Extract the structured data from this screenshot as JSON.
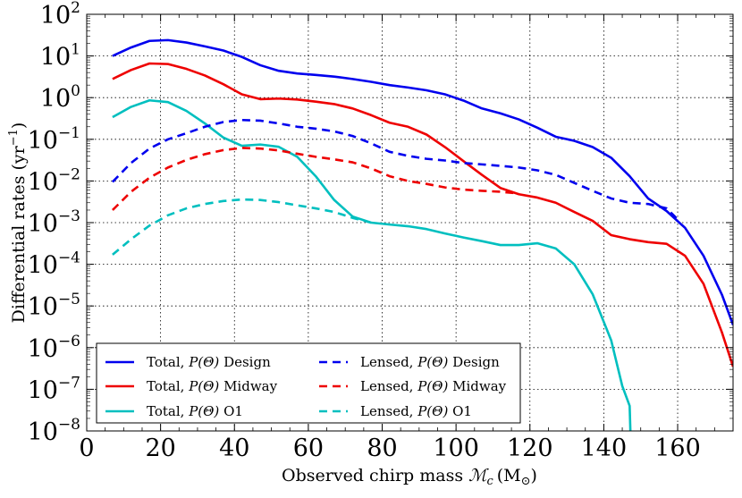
{
  "chart_data": {
    "type": "line",
    "xlabel": "Observed chirp mass",
    "xlabel_symbol": "ℳ",
    "xlabel_sub": "c",
    "xlabel_unit": "(M",
    "xlabel_unit_sub": "⊙",
    "xlabel_unit_close": ")",
    "ylabel": "Differential rates (yr",
    "ylabel_sup": "−1",
    "ylabel_close": ")",
    "xlim": [
      0,
      175
    ],
    "ylim_log10": [
      -8,
      2
    ],
    "x_ticks": [
      0,
      20,
      40,
      60,
      80,
      100,
      120,
      140,
      160
    ],
    "x_tick_labels": [
      "0",
      "20",
      "40",
      "60",
      "80",
      "100",
      "120",
      "140",
      "160"
    ],
    "y_ticks_log10": [
      -8,
      -7,
      -6,
      -5,
      -4,
      -3,
      -2,
      -1,
      0,
      1,
      2
    ],
    "y_tick_base": "10",
    "y_tick_exponents": [
      "−8",
      "−7",
      "−6",
      "−5",
      "−4",
      "−3",
      "−2",
      "−1",
      "0",
      "1",
      "2"
    ],
    "grid": true,
    "legend_position": "bottom-left",
    "series": [
      {
        "name": "Total, P(Θ) Design",
        "legend_prefix": "Total, ",
        "legend_mid": "P(Θ)",
        "legend_suffix": " Design",
        "color": "#0000ee",
        "style": "solid",
        "points": [
          [
            7,
            10
          ],
          [
            12,
            16
          ],
          [
            17,
            23
          ],
          [
            22,
            24
          ],
          [
            27,
            21
          ],
          [
            32,
            17
          ],
          [
            37,
            13.5
          ],
          [
            42,
            9.5
          ],
          [
            47,
            6
          ],
          [
            52,
            4.4
          ],
          [
            57,
            3.8
          ],
          [
            62,
            3.5
          ],
          [
            67,
            3.2
          ],
          [
            72,
            2.8
          ],
          [
            77,
            2.4
          ],
          [
            82,
            2
          ],
          [
            87,
            1.75
          ],
          [
            92,
            1.5
          ],
          [
            97,
            1.2
          ],
          [
            102,
            0.85
          ],
          [
            107,
            0.55
          ],
          [
            112,
            0.42
          ],
          [
            117,
            0.3
          ],
          [
            122,
            0.19
          ],
          [
            127,
            0.115
          ],
          [
            132,
            0.092
          ],
          [
            137,
            0.065
          ],
          [
            142,
            0.036
          ],
          [
            147,
            0.013
          ],
          [
            152,
            0.0038
          ],
          [
            157,
            0.0019
          ],
          [
            162,
            0.00075
          ],
          [
            167,
            0.00016
          ],
          [
            172,
            1.85e-05
          ],
          [
            175,
            3.5e-06
          ]
        ]
      },
      {
        "name": "Total, P(Θ) Midway",
        "legend_prefix": "Total, ",
        "legend_mid": "P(Θ)",
        "legend_suffix": " Midway",
        "color": "#ee0000",
        "style": "solid",
        "points": [
          [
            7,
            2.8
          ],
          [
            12,
            4.6
          ],
          [
            17,
            6.6
          ],
          [
            22,
            6.4
          ],
          [
            27,
            4.9
          ],
          [
            32,
            3.4
          ],
          [
            37,
            2.1
          ],
          [
            42,
            1.2
          ],
          [
            47,
            0.92
          ],
          [
            52,
            0.95
          ],
          [
            57,
            0.9
          ],
          [
            62,
            0.8
          ],
          [
            67,
            0.7
          ],
          [
            72,
            0.55
          ],
          [
            77,
            0.38
          ],
          [
            82,
            0.25
          ],
          [
            87,
            0.2
          ],
          [
            92,
            0.13
          ],
          [
            97,
            0.065
          ],
          [
            102,
            0.03
          ],
          [
            107,
            0.014
          ],
          [
            112,
            0.0068
          ],
          [
            117,
            0.0048
          ],
          [
            122,
            0.004
          ],
          [
            127,
            0.003
          ],
          [
            132,
            0.0018
          ],
          [
            137,
            0.0011
          ],
          [
            142,
            0.0005
          ],
          [
            147,
            0.0004
          ],
          [
            152,
            0.00034
          ],
          [
            157,
            0.00031
          ],
          [
            162,
            0.00016
          ],
          [
            167,
            3.4e-05
          ],
          [
            172,
            2.3e-06
          ],
          [
            175,
            3.5e-07
          ]
        ]
      },
      {
        "name": "Total, P(Θ) O1",
        "legend_prefix": "Total, ",
        "legend_mid": "P(Θ)",
        "legend_suffix": " O1",
        "color": "#00bfbf",
        "style": "solid",
        "points": [
          [
            7,
            0.34
          ],
          [
            12,
            0.6
          ],
          [
            17,
            0.86
          ],
          [
            22,
            0.78
          ],
          [
            27,
            0.48
          ],
          [
            32,
            0.24
          ],
          [
            37,
            0.11
          ],
          [
            42,
            0.07
          ],
          [
            47,
            0.075
          ],
          [
            52,
            0.066
          ],
          [
            57,
            0.038
          ],
          [
            62,
            0.013
          ],
          [
            67,
            0.0035
          ],
          [
            72,
            0.0014
          ],
          [
            77,
            0.001
          ],
          [
            82,
            0.0009
          ],
          [
            87,
            0.00082
          ],
          [
            92,
            0.0007
          ],
          [
            97,
            0.00055
          ],
          [
            102,
            0.00044
          ],
          [
            107,
            0.00036
          ],
          [
            112,
            0.00029
          ],
          [
            117,
            0.00029
          ],
          [
            122,
            0.00032
          ],
          [
            127,
            0.00024
          ],
          [
            132,
            0.0001
          ],
          [
            137,
            1.9e-05
          ],
          [
            142,
            1.5e-06
          ],
          [
            145,
            1.2e-07
          ],
          [
            147,
            4e-08
          ],
          [
            147.2,
            1e-08
          ]
        ]
      },
      {
        "name": "Lensed, P(Θ) Design",
        "legend_prefix": "Lensed, ",
        "legend_mid": "P(Θ)",
        "legend_suffix": " Design",
        "color": "#0000ee",
        "style": "dashed",
        "points": [
          [
            7,
            0.0095
          ],
          [
            12,
            0.027
          ],
          [
            17,
            0.06
          ],
          [
            22,
            0.1
          ],
          [
            27,
            0.14
          ],
          [
            32,
            0.2
          ],
          [
            37,
            0.26
          ],
          [
            42,
            0.29
          ],
          [
            47,
            0.28
          ],
          [
            52,
            0.24
          ],
          [
            57,
            0.2
          ],
          [
            62,
            0.18
          ],
          [
            67,
            0.155
          ],
          [
            72,
            0.12
          ],
          [
            77,
            0.08
          ],
          [
            82,
            0.05
          ],
          [
            87,
            0.04
          ],
          [
            92,
            0.034
          ],
          [
            97,
            0.031
          ],
          [
            102,
            0.027
          ],
          [
            107,
            0.025
          ],
          [
            112,
            0.023
          ],
          [
            117,
            0.021
          ],
          [
            122,
            0.018
          ],
          [
            127,
            0.014
          ],
          [
            132,
            0.009
          ],
          [
            137,
            0.0058
          ],
          [
            142,
            0.0038
          ],
          [
            147,
            0.003
          ],
          [
            152,
            0.0028
          ],
          [
            157,
            0.0022
          ],
          [
            160,
            0.0012
          ]
        ]
      },
      {
        "name": "Lensed, P(Θ) Midway",
        "legend_prefix": "Lensed, ",
        "legend_mid": "P(Θ)",
        "legend_suffix": " Midway",
        "color": "#ee0000",
        "style": "dashed",
        "points": [
          [
            7,
            0.002
          ],
          [
            12,
            0.0055
          ],
          [
            17,
            0.012
          ],
          [
            22,
            0.021
          ],
          [
            27,
            0.032
          ],
          [
            32,
            0.044
          ],
          [
            37,
            0.055
          ],
          [
            42,
            0.062
          ],
          [
            47,
            0.06
          ],
          [
            52,
            0.054
          ],
          [
            57,
            0.045
          ],
          [
            62,
            0.038
          ],
          [
            67,
            0.033
          ],
          [
            72,
            0.028
          ],
          [
            77,
            0.02
          ],
          [
            82,
            0.013
          ],
          [
            87,
            0.01
          ],
          [
            92,
            0.0085
          ],
          [
            97,
            0.007
          ],
          [
            102,
            0.0062
          ],
          [
            107,
            0.0058
          ],
          [
            112,
            0.0055
          ],
          [
            117,
            0.005
          ]
        ]
      },
      {
        "name": "Lensed, P(Θ) O1",
        "legend_prefix": "Lensed, ",
        "legend_mid": "P(Θ)",
        "legend_suffix": " O1",
        "color": "#00bfbf",
        "style": "dashed",
        "points": [
          [
            7,
            0.00017
          ],
          [
            12,
            0.0004
          ],
          [
            17,
            0.00085
          ],
          [
            22,
            0.0015
          ],
          [
            27,
            0.0022
          ],
          [
            32,
            0.0028
          ],
          [
            37,
            0.0033
          ],
          [
            42,
            0.0036
          ],
          [
            47,
            0.0035
          ],
          [
            52,
            0.0031
          ],
          [
            57,
            0.0026
          ],
          [
            62,
            0.0022
          ],
          [
            67,
            0.0018
          ],
          [
            72,
            0.0013
          ],
          [
            77,
            0.001
          ]
        ]
      }
    ]
  }
}
